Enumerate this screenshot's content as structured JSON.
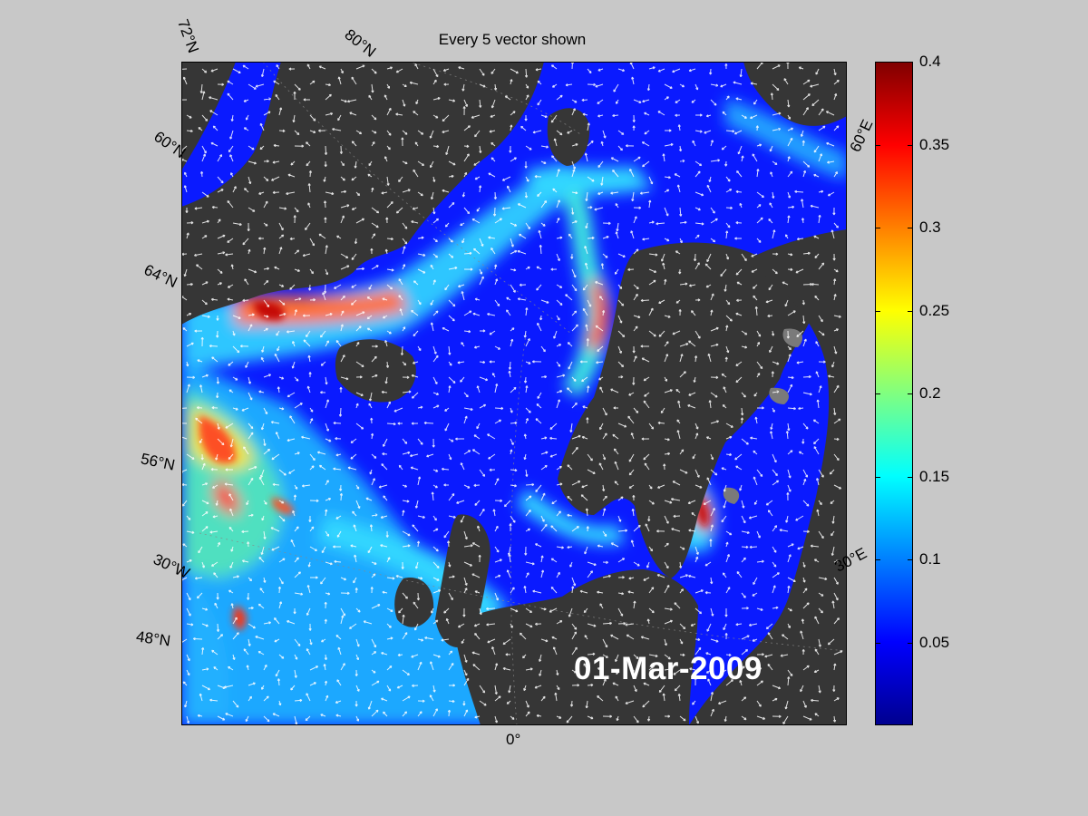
{
  "title": "Every 5 vector shown",
  "date_label": "01-Mar-2009",
  "map_labels": {
    "lat_72": "72°N",
    "lat_80": "80°N",
    "lat_60": "60°N",
    "lat_64": "64°N",
    "lat_56": "56°N",
    "lat_48": "48°N",
    "lon_30w": "30°W",
    "lon_0": "0°",
    "lon_30e": "30°E",
    "lon_60e": "60°E"
  },
  "colorbar": {
    "ticks": [
      "0.4",
      "0.35",
      "0.3",
      "0.25",
      "0.2",
      "0.15",
      "0.1",
      "0.05"
    ],
    "range": [
      0,
      0.4
    ],
    "colormap": "jet"
  },
  "colors": {
    "ocean_low": "#0a1aff",
    "land": "#363636",
    "background": "#c8c8c8"
  }
}
